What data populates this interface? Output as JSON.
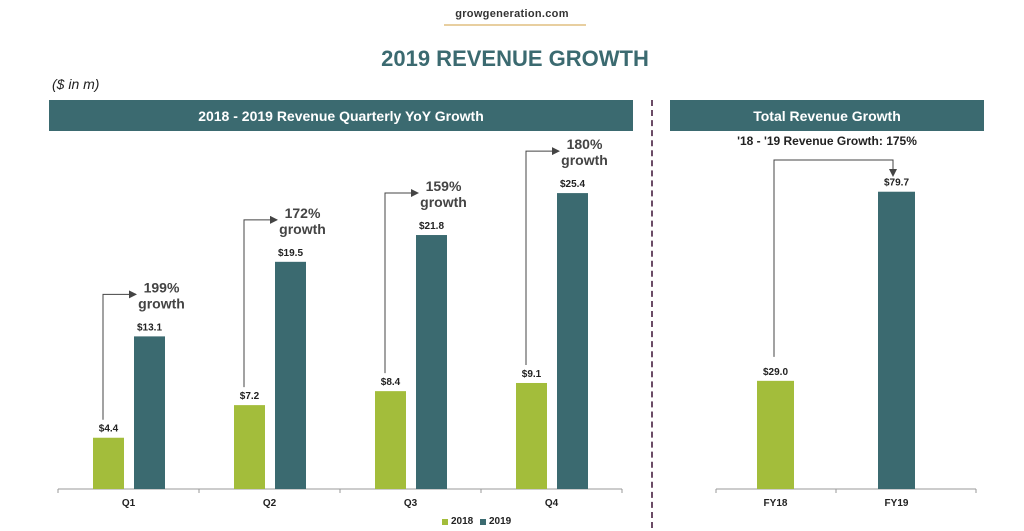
{
  "header": {
    "site": "growgeneration.com",
    "title": "2019 REVENUE GROWTH",
    "unit_note": "($ in m)"
  },
  "quarterly_panel": {
    "banner": "2018 - 2019 Revenue Quarterly YoY Growth"
  },
  "total_panel": {
    "banner": "Total Revenue Growth",
    "subtitle": "'18 - '19 Revenue Growth: 175%"
  },
  "legend": [
    {
      "label": "2018",
      "color": "#a3bd3b"
    },
    {
      "label": "2019",
      "color": "#3b6a70"
    }
  ],
  "chart_data": [
    {
      "type": "bar",
      "title": "2018 - 2019 Revenue Quarterly YoY Growth",
      "categories": [
        "Q1",
        "Q2",
        "Q3",
        "Q4"
      ],
      "series": [
        {
          "name": "2018",
          "values": [
            4.4,
            7.2,
            8.4,
            9.1
          ],
          "labels": [
            "$4.4",
            "$7.2",
            "$8.4",
            "$9.1"
          ],
          "color": "#a3bd3b"
        },
        {
          "name": "2019",
          "values": [
            13.1,
            19.5,
            21.8,
            25.4
          ],
          "labels": [
            "$13.1",
            "$19.5",
            "$21.8",
            "$25.4"
          ],
          "color": "#3b6a70"
        }
      ],
      "annotations": [
        {
          "category": "Q1",
          "line1": "199%",
          "line2": "growth"
        },
        {
          "category": "Q2",
          "line1": "172%",
          "line2": "growth"
        },
        {
          "category": "Q3",
          "line1": "159%",
          "line2": "growth"
        },
        {
          "category": "Q4",
          "line1": "180%",
          "line2": "growth"
        }
      ],
      "xlabel": "",
      "ylabel": "",
      "ylim": [
        0,
        30
      ],
      "grid": false,
      "legend": "bottom"
    },
    {
      "type": "bar",
      "title": "Total Revenue Growth",
      "categories": [
        "FY18",
        "FY19"
      ],
      "values": [
        29.0,
        79.7
      ],
      "labels": [
        "$29.0",
        "$79.7"
      ],
      "colors": [
        "#a3bd3b",
        "#3b6a70"
      ],
      "annotation": "'18 - '19 Revenue Growth: 175%",
      "xlabel": "",
      "ylabel": "",
      "ylim": [
        0,
        90
      ],
      "grid": false
    }
  ]
}
